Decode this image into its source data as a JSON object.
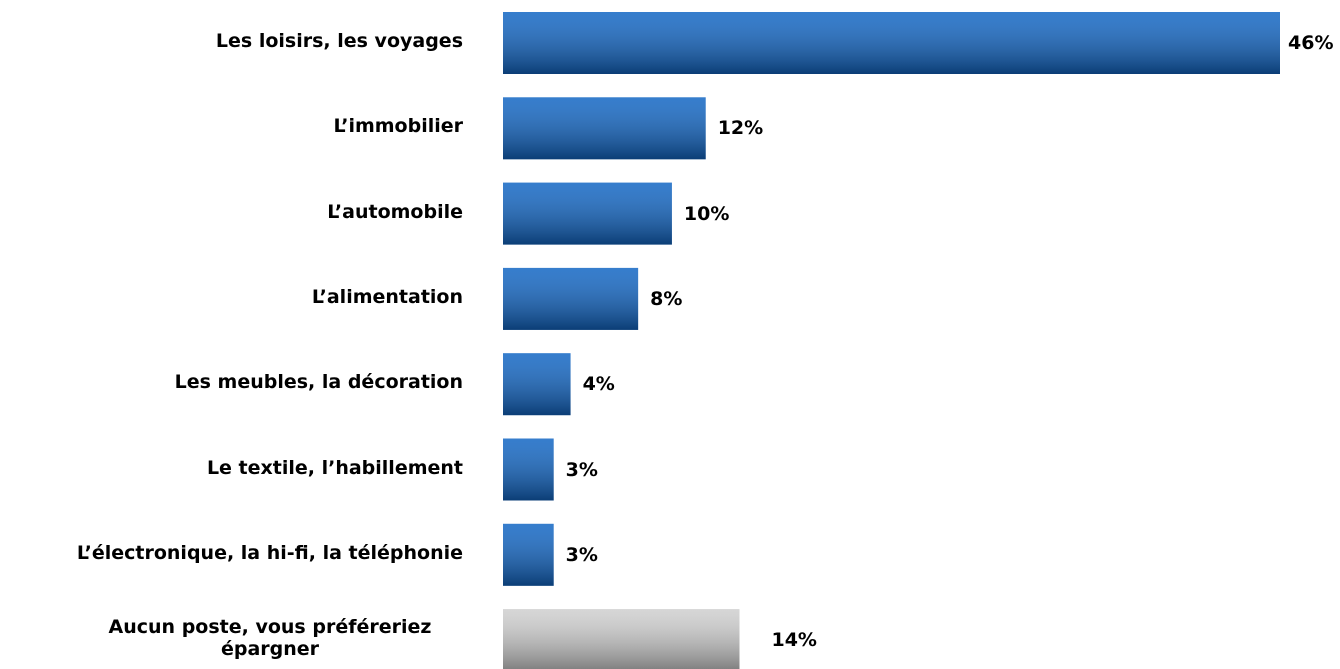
{
  "chart_data": {
    "type": "bar",
    "orientation": "horizontal",
    "categories": [
      "Les loisirs, les voyages",
      "L’immobilier",
      "L’automobile",
      "L’alimentation",
      "Les meubles, la décoration",
      "Le textile, l’habillement",
      "L’électronique, la hi-fi, la téléphonie",
      "Aucun poste, vous préféreriez\népargner"
    ],
    "values": [
      46,
      12,
      10,
      8,
      4,
      3,
      3,
      14
    ],
    "value_labels": [
      "46%",
      "12%",
      "10%",
      "8%",
      "4%",
      "3%",
      "3%",
      "14%"
    ],
    "colors": [
      "#1266c4",
      "#1266c4",
      "#1266c4",
      "#1266c4",
      "#1266c4",
      "#1266c4",
      "#1266c4",
      "#cfcfcf"
    ]
  }
}
